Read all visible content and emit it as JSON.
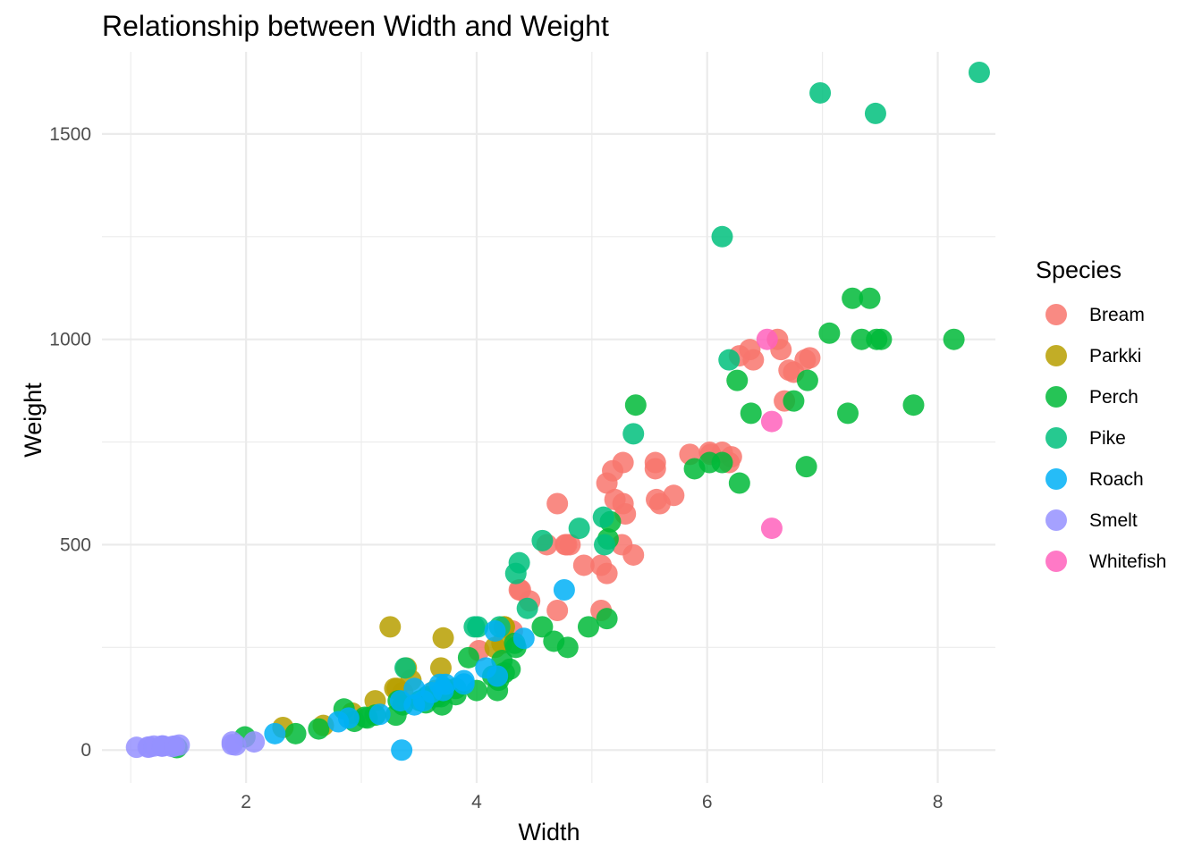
{
  "chart_data": {
    "type": "scatter",
    "title": "Relationship between Width and Weight",
    "xlabel": "Width",
    "ylabel": "Weight",
    "xlim": [
      0.75,
      8.5
    ],
    "ylim": [
      -80,
      1700
    ],
    "x_ticks": [
      2,
      4,
      6,
      8
    ],
    "y_ticks": [
      0,
      500,
      1000,
      1500
    ],
    "grid": true,
    "legend_title": "Species",
    "legend_position": "right",
    "series": [
      {
        "name": "Bream",
        "color": "#F8766D",
        "points": [
          [
            4.02,
            242
          ],
          [
            4.31,
            290
          ],
          [
            4.7,
            340
          ],
          [
            4.46,
            363
          ],
          [
            5.13,
            430
          ],
          [
            4.93,
            450
          ],
          [
            4.81,
            500
          ],
          [
            4.37,
            390
          ],
          [
            5.08,
            450
          ],
          [
            4.77,
            500
          ],
          [
            5.36,
            475
          ],
          [
            4.61,
            500
          ],
          [
            4.78,
            500
          ],
          [
            5.08,
            340
          ],
          [
            4.7,
            600
          ],
          [
            5.27,
            600
          ],
          [
            5.27,
            700
          ],
          [
            5.55,
            700
          ],
          [
            5.56,
            610
          ],
          [
            5.13,
            650
          ],
          [
            5.29,
            575
          ],
          [
            5.55,
            685
          ],
          [
            5.71,
            620
          ],
          [
            5.18,
            680
          ],
          [
            6.19,
            700
          ],
          [
            6.13,
            725
          ],
          [
            5.85,
            720
          ],
          [
            6.21,
            714
          ],
          [
            6.67,
            850
          ],
          [
            6.61,
            1000
          ],
          [
            6.75,
            920
          ],
          [
            6.89,
            955
          ],
          [
            6.71,
            925
          ],
          [
            6.37,
            975
          ],
          [
            6.85,
            950
          ],
          [
            5.26,
            500
          ],
          [
            5.2,
            610
          ],
          [
            4.38,
            390
          ],
          [
            6.02,
            725
          ],
          [
            5.59,
            600
          ],
          [
            6.03,
            720
          ],
          [
            6.4,
            950
          ],
          [
            6.28,
            960
          ],
          [
            6.64,
            975
          ]
        ]
      },
      {
        "name": "Parkki",
        "color": "#B79F00",
        "points": [
          [
            2.32,
            55
          ],
          [
            2.67,
            60
          ],
          [
            2.92,
            90
          ],
          [
            3.12,
            120
          ],
          [
            3.29,
            150
          ],
          [
            3.36,
            140
          ],
          [
            3.43,
            170
          ],
          [
            3.64,
            145
          ],
          [
            3.39,
            200
          ],
          [
            3.71,
            273
          ],
          [
            3.25,
            300
          ],
          [
            4.24,
            300
          ],
          [
            4.16,
            250
          ],
          [
            3.31,
            150
          ],
          [
            3.69,
            200
          ],
          [
            4.24,
            300
          ],
          [
            4.22,
            260
          ]
        ]
      },
      {
        "name": "Perch",
        "color": "#00BA38",
        "points": [
          [
            1.4,
            5.9
          ],
          [
            1.99,
            32
          ],
          [
            2.43,
            40
          ],
          [
            2.63,
            51.5
          ],
          [
            2.94,
            70
          ],
          [
            2.85,
            100
          ],
          [
            3.05,
            78
          ],
          [
            3.03,
            80
          ],
          [
            3.12,
            85
          ],
          [
            3.3,
            85
          ],
          [
            3.36,
            110
          ],
          [
            3.56,
            115
          ],
          [
            3.56,
            125
          ],
          [
            3.65,
            130
          ],
          [
            3.32,
            120
          ],
          [
            3.51,
            120
          ],
          [
            3.57,
            130
          ],
          [
            3.82,
            135
          ],
          [
            3.7,
            110
          ],
          [
            3.69,
            130
          ],
          [
            3.72,
            150
          ],
          [
            4.0,
            145
          ],
          [
            3.82,
            150
          ],
          [
            4.19,
            170
          ],
          [
            3.93,
            225
          ],
          [
            4.18,
            145
          ],
          [
            4.24,
            188
          ],
          [
            4.14,
            180
          ],
          [
            4.29,
            197
          ],
          [
            4.22,
            218
          ],
          [
            4.57,
            300
          ],
          [
            4.33,
            260
          ],
          [
            4.67,
            265
          ],
          [
            4.79,
            250
          ],
          [
            4.34,
            250
          ],
          [
            4.97,
            300
          ],
          [
            5.13,
            320
          ],
          [
            5.14,
            514
          ],
          [
            5.16,
            556
          ],
          [
            5.38,
            840
          ],
          [
            5.89,
            685
          ],
          [
            6.02,
            700
          ],
          [
            6.13,
            700
          ],
          [
            6.86,
            690
          ],
          [
            6.26,
            900
          ],
          [
            6.28,
            650
          ],
          [
            6.38,
            820
          ],
          [
            6.75,
            850
          ],
          [
            6.87,
            900
          ],
          [
            7.06,
            1015
          ],
          [
            7.22,
            820
          ],
          [
            7.26,
            1100
          ],
          [
            7.34,
            1000
          ],
          [
            7.41,
            1100
          ],
          [
            7.47,
            1000
          ],
          [
            7.51,
            1000
          ],
          [
            7.79,
            840
          ],
          [
            8.14,
            1000
          ]
        ]
      },
      {
        "name": "Pike",
        "color": "#00BF7D",
        "points": [
          [
            3.38,
            200
          ],
          [
            3.98,
            300
          ],
          [
            4.01,
            300
          ],
          [
            4.2,
            300
          ],
          [
            4.34,
            430
          ],
          [
            4.44,
            345
          ],
          [
            4.37,
            456
          ],
          [
            4.57,
            510
          ],
          [
            4.89,
            540
          ],
          [
            5.11,
            500
          ],
          [
            5.1,
            567
          ],
          [
            5.36,
            770
          ],
          [
            6.19,
            950
          ],
          [
            6.13,
            1250
          ],
          [
            6.98,
            1600
          ],
          [
            7.46,
            1550
          ],
          [
            8.36,
            1650
          ]
        ]
      },
      {
        "name": "Roach",
        "color": "#00B0F6",
        "points": [
          [
            2.25,
            40
          ],
          [
            2.8,
            69
          ],
          [
            2.89,
            78
          ],
          [
            3.16,
            87
          ],
          [
            3.34,
            120
          ],
          [
            3.35,
            0
          ],
          [
            3.46,
            110
          ],
          [
            3.54,
            120
          ],
          [
            3.46,
            150
          ],
          [
            3.71,
            145
          ],
          [
            3.68,
            160
          ],
          [
            3.61,
            140
          ],
          [
            3.73,
            160
          ],
          [
            3.89,
            169
          ],
          [
            3.89,
            161
          ],
          [
            4.08,
            200
          ],
          [
            4.18,
            180
          ],
          [
            4.16,
            290
          ],
          [
            4.41,
            272
          ],
          [
            4.76,
            390
          ]
        ]
      },
      {
        "name": "Smelt",
        "color": "#9590FF",
        "points": [
          [
            1.05,
            6.7
          ],
          [
            1.16,
            7.5
          ],
          [
            1.15,
            7.0
          ],
          [
            1.27,
            9.7
          ],
          [
            1.27,
            9.8
          ],
          [
            1.36,
            8.7
          ],
          [
            1.28,
            10.0
          ],
          [
            1.38,
            9.9
          ],
          [
            1.2,
            9.8
          ],
          [
            1.42,
            12.2
          ],
          [
            1.88,
            19.7
          ],
          [
            2.07,
            19.9
          ],
          [
            1.88,
            13.4
          ],
          [
            1.91,
            12.2
          ]
        ]
      },
      {
        "name": "Whitefish",
        "color": "#FF62BC",
        "points": [
          [
            6.52,
            1000
          ],
          [
            6.56,
            800
          ],
          [
            6.56,
            540
          ]
        ]
      }
    ]
  }
}
